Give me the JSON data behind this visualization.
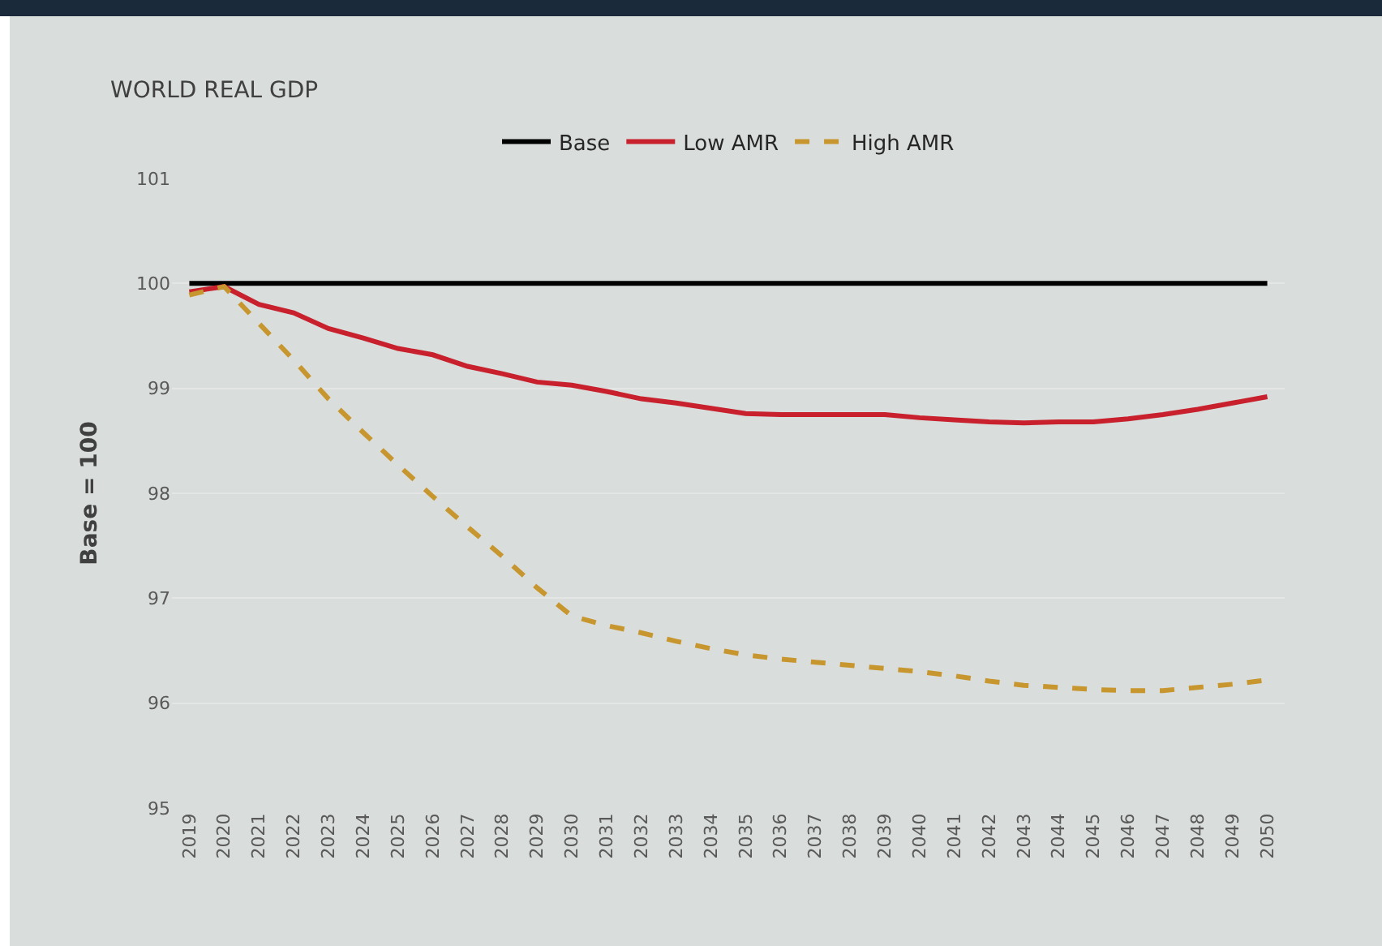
{
  "chart_data": {
    "type": "line",
    "title": "WORLD REAL GDP",
    "ylabel": "Base = 100",
    "categories": [
      "2019",
      "2020",
      "2021",
      "2022",
      "2023",
      "2024",
      "2025",
      "2026",
      "2027",
      "2028",
      "2029",
      "2030",
      "2031",
      "2032",
      "2033",
      "2034",
      "2035",
      "2036",
      "2037",
      "2038",
      "2039",
      "2040",
      "2041",
      "2042",
      "2043",
      "2044",
      "2045",
      "2046",
      "2047",
      "2048",
      "2049",
      "2050"
    ],
    "series": [
      {
        "name": "Base",
        "color": "#000000",
        "line_style": "solid",
        "values": [
          100,
          100,
          100,
          100,
          100,
          100,
          100,
          100,
          100,
          100,
          100,
          100,
          100,
          100,
          100,
          100,
          100,
          100,
          100,
          100,
          100,
          100,
          100,
          100,
          100,
          100,
          100,
          100,
          100,
          100,
          100,
          100
        ]
      },
      {
        "name": "Low AMR",
        "color": "#c8202c",
        "line_style": "solid",
        "values": [
          99.92,
          99.97,
          99.8,
          99.72,
          99.57,
          99.48,
          99.38,
          99.32,
          99.21,
          99.14,
          99.06,
          99.03,
          98.97,
          98.9,
          98.86,
          98.81,
          98.76,
          98.75,
          98.75,
          98.75,
          98.75,
          98.72,
          98.7,
          98.68,
          98.67,
          98.68,
          98.68,
          98.71,
          98.75,
          98.8,
          98.86,
          98.92
        ]
      },
      {
        "name": "High AMR",
        "color": "#c8962e",
        "line_style": "dashed",
        "values": [
          99.89,
          99.97,
          99.62,
          99.27,
          98.9,
          98.58,
          98.27,
          97.97,
          97.68,
          97.4,
          97.1,
          96.83,
          96.74,
          96.67,
          96.59,
          96.52,
          96.46,
          96.42,
          96.39,
          96.36,
          96.33,
          96.3,
          96.26,
          96.21,
          96.17,
          96.15,
          96.13,
          96.12,
          96.12,
          96.15,
          96.18,
          96.22
        ]
      }
    ],
    "ylim": [
      95,
      101
    ],
    "yticks": [
      95,
      96,
      97,
      98,
      99,
      100,
      101
    ],
    "grid": "y",
    "legend": "top",
    "marker": "none"
  }
}
